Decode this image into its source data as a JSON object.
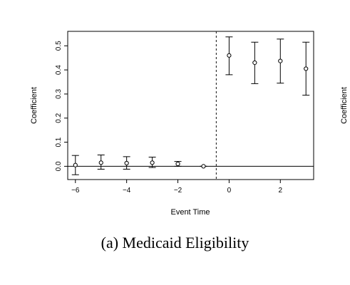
{
  "caption": "(a) Medicaid Eligibility",
  "chart_data": {
    "type": "scatter",
    "xlabel": "Event Time",
    "ylabel": "Coefficient",
    "right_panel_ylabel_fragment": "Coefficient",
    "xlim": [
      -6.3,
      3.3
    ],
    "ylim": [
      -0.055,
      0.56
    ],
    "x_ticks": [
      -6,
      -4,
      -2,
      0,
      2
    ],
    "y_ticks": [
      0.0,
      0.1,
      0.2,
      0.3,
      0.4,
      0.5
    ],
    "x_tick_labels": [
      "−6",
      "−4",
      "−2",
      "0",
      "2"
    ],
    "y_tick_labels": [
      "0.0",
      "0.1",
      "0.2",
      "0.3",
      "0.4",
      "0.5"
    ],
    "reference_hline": 0,
    "reference_vline": -0.5,
    "points": [
      {
        "x": -6,
        "y": 0.005,
        "lo": -0.035,
        "hi": 0.045
      },
      {
        "x": -5,
        "y": 0.015,
        "lo": -0.012,
        "hi": 0.047
      },
      {
        "x": -4,
        "y": 0.013,
        "lo": -0.012,
        "hi": 0.04
      },
      {
        "x": -3,
        "y": 0.015,
        "lo": -0.005,
        "hi": 0.038
      },
      {
        "x": -2,
        "y": 0.01,
        "lo": 0.0,
        "hi": 0.02
      },
      {
        "x": -1,
        "y": 0.0,
        "lo": 0.0,
        "hi": 0.0
      },
      {
        "x": 0,
        "y": 0.46,
        "lo": 0.38,
        "hi": 0.537
      },
      {
        "x": 1,
        "y": 0.43,
        "lo": 0.343,
        "hi": 0.515
      },
      {
        "x": 2,
        "y": 0.437,
        "lo": 0.345,
        "hi": 0.528
      },
      {
        "x": 3,
        "y": 0.405,
        "lo": 0.295,
        "hi": 0.515
      }
    ]
  }
}
